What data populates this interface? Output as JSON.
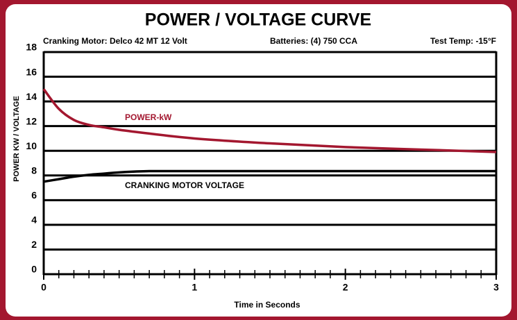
{
  "chart_data": {
    "type": "line",
    "title": "POWER / VOLTAGE CURVE",
    "subtitle_left": "Cranking Motor: Delco 42 MT 12 Volt",
    "subtitle_center": "Batteries: (4) 750 CCA",
    "subtitle_right": "Test Temp: -15°F",
    "xlabel": "Time in Seconds",
    "ylabel": "POWER KW / VOLTAGE",
    "annotations": [
      {
        "text": "POWER-kW",
        "color": "#a3172f"
      },
      {
        "text": "CRANKING MOTOR VOLTAGE",
        "color": "#000000"
      }
    ],
    "x": [
      0,
      0.1,
      0.2,
      0.3,
      0.4,
      0.5,
      0.7,
      1,
      1.5,
      2,
      2.5,
      3
    ],
    "series": [
      {
        "color": "#a3172f",
        "values": [
          15,
          13.4,
          12.5,
          12.1,
          11.9,
          11.7,
          11.4,
          11.0,
          10.6,
          10.3,
          10.1,
          9.9
        ]
      },
      {
        "color": "#000000",
        "values": [
          7.5,
          7.7,
          7.9,
          8.05,
          8.15,
          8.25,
          8.35,
          8.35,
          8.35,
          8.35,
          8.35,
          8.35
        ]
      }
    ],
    "xlim": [
      0,
      3
    ],
    "xticks": [
      0,
      1,
      2,
      3
    ],
    "xminorticks": [
      0.1,
      0.2,
      0.3,
      0.4,
      0.5,
      0.6,
      0.7,
      0.8,
      0.9,
      1.1,
      1.2,
      1.3,
      1.4,
      1.5,
      1.6,
      1.7,
      1.8,
      1.9,
      2.1,
      2.2,
      2.3,
      2.4,
      2.5,
      2.6,
      2.7,
      2.8,
      2.9
    ],
    "ylim": [
      0,
      18
    ],
    "yticks": [
      0,
      2,
      4,
      6,
      8,
      10,
      12,
      14,
      16,
      18
    ],
    "grid": true
  }
}
